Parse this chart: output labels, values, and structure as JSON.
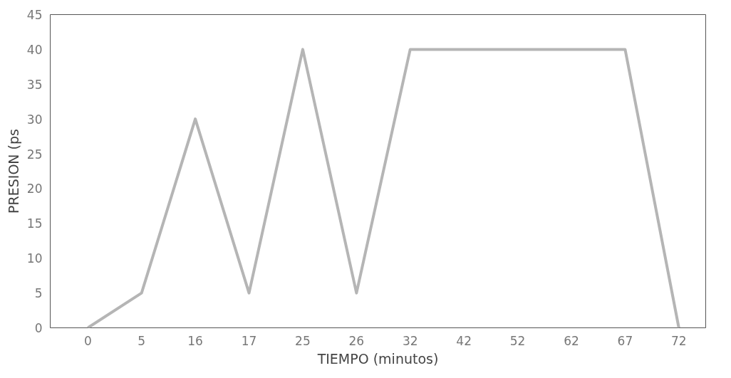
{
  "chart_data": {
    "type": "line",
    "xlabel": "TIEMPO (minutos)",
    "ylabel": "PRESION (ps",
    "categories": [
      "0",
      "5",
      "16",
      "17",
      "25",
      "26",
      "32",
      "42",
      "52",
      "62",
      "67",
      "72"
    ],
    "series": [
      {
        "color": "#b5b5b5",
        "values": [
          0,
          5,
          30,
          5,
          40,
          5,
          40,
          40,
          40,
          40,
          40,
          0
        ]
      }
    ],
    "ylim": [
      0,
      45
    ],
    "yticks": [
      0,
      5,
      10,
      15,
      20,
      25,
      30,
      35,
      40,
      45
    ],
    "grid": false,
    "marker": "none",
    "line_style": "solid"
  }
}
